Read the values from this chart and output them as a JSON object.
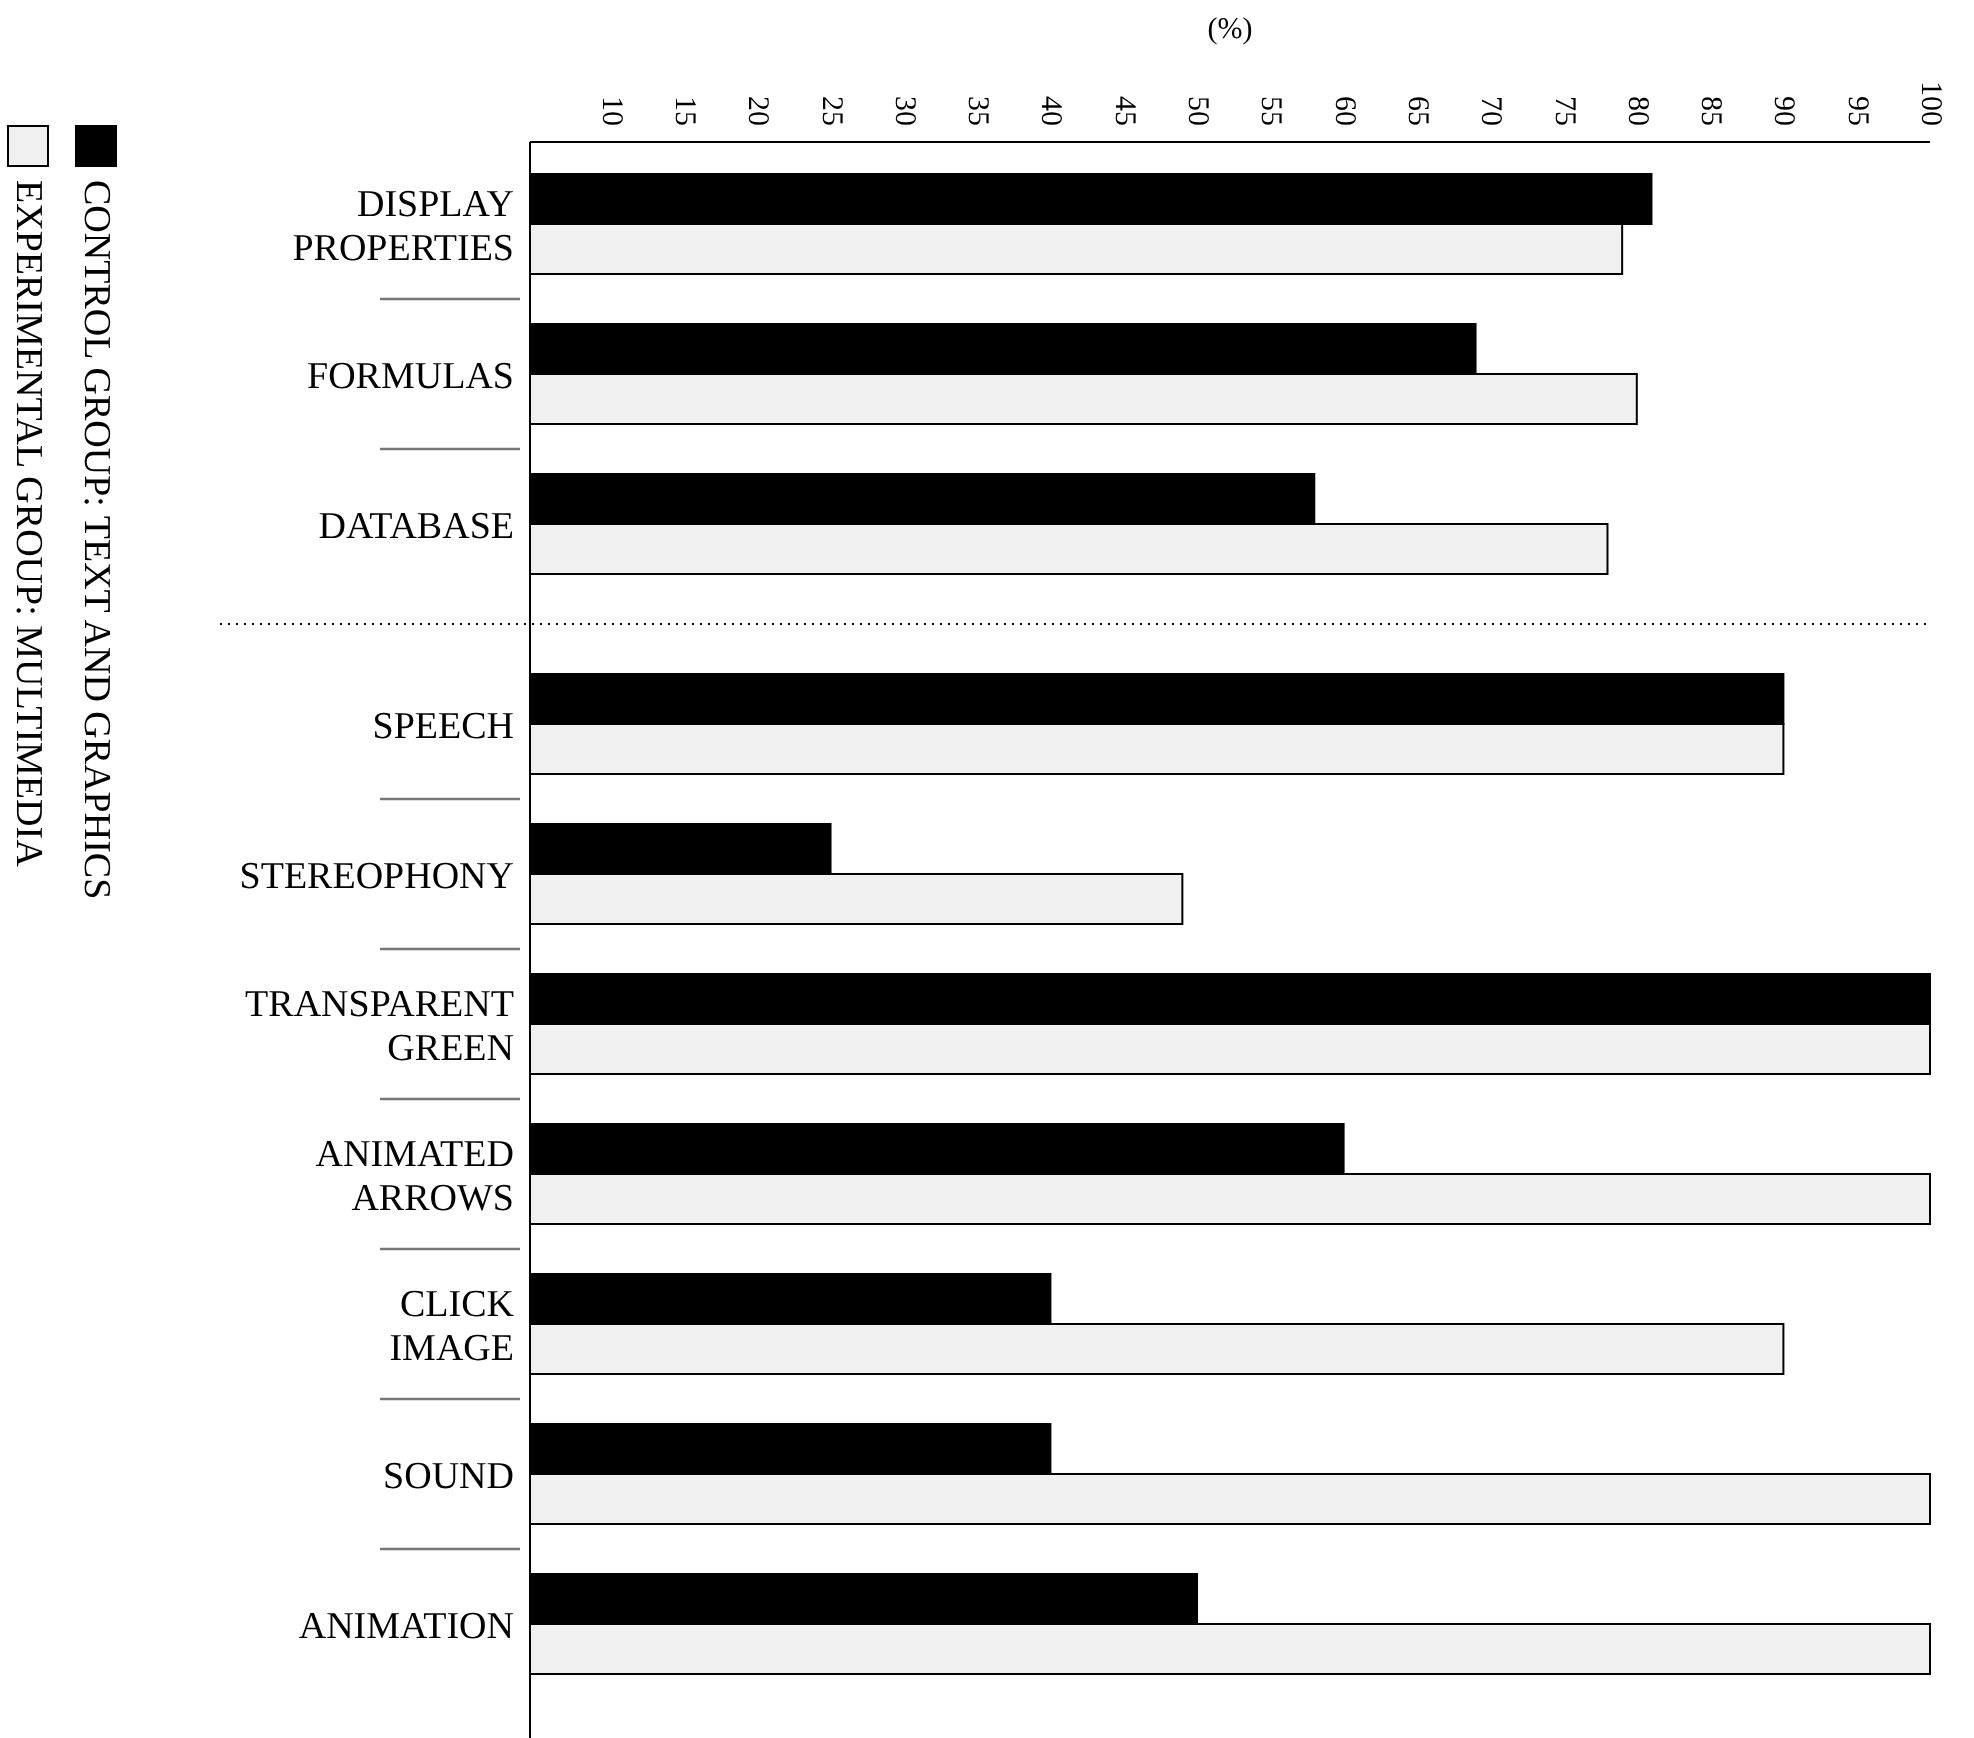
{
  "chart_data": {
    "type": "bar",
    "orientation": "horizontal",
    "xlabel": "(%)",
    "categories": [
      "DISPLAY PROPERTIES",
      "FORMULAS",
      "DATABASE",
      "SPEECH",
      "STEREOPHONY",
      "TRANSPARENT GREEN",
      "ANIMATED ARROWS",
      "CLICK IMAGE",
      "SOUND",
      "ANIMATION"
    ],
    "series": [
      {
        "name": "CONTROL GROUP: TEXT AND GRAPHICS",
        "color": "#000000",
        "values": [
          81,
          69,
          58,
          90,
          25,
          100,
          60,
          40,
          40,
          50
        ]
      },
      {
        "name": "EXPERIMENTAL GROUP: MULTIMEDIA",
        "color": "#f0f0f0",
        "values": [
          79,
          80,
          78,
          90,
          49,
          100,
          100,
          90,
          100,
          100
        ]
      }
    ],
    "xlim": [
      4.5,
      100
    ],
    "xticks": [
      10,
      15,
      20,
      25,
      30,
      35,
      40,
      45,
      50,
      55,
      60,
      65,
      70,
      75,
      80,
      85,
      90,
      95,
      100
    ],
    "grid": false,
    "legend": "left"
  }
}
